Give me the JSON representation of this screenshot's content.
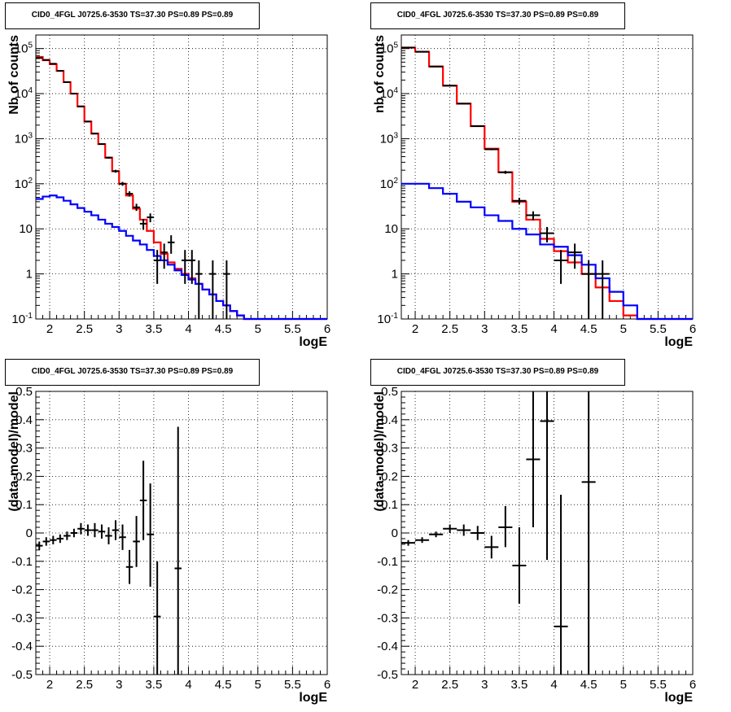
{
  "chart_data": [
    {
      "type": "histogram",
      "title": "CID0_4FGL J0725.6-3530 TS=37.30 PS=0.89 PS=0.89",
      "xlabel": "logE",
      "ylabel": "Nb of counts",
      "xlim": [
        1.8,
        6.0
      ],
      "ylim": [
        0.1,
        200000
      ],
      "yscale": "log",
      "grid": true,
      "x_ticks": [
        "2",
        "2.5",
        "3",
        "3.5",
        "4",
        "4.5",
        "5",
        "5.5",
        "6"
      ],
      "y_ticks": [
        "10^{-1}",
        "1",
        "10",
        "10^{2}",
        "10^{3}",
        "10^{4}",
        "10^{5}"
      ],
      "series": [
        {
          "color": "#ff0000",
          "bin_edges": [
            1.8,
            1.9,
            2.0,
            2.1,
            2.2,
            2.3,
            2.4,
            2.5,
            2.6,
            2.7,
            2.8,
            2.9,
            3.0,
            3.1,
            3.2,
            3.3,
            3.4,
            3.5,
            3.6,
            3.7,
            3.8,
            3.9,
            4.0,
            4.1,
            4.2,
            4.3,
            4.4,
            4.5,
            4.6,
            4.7,
            4.8,
            4.9,
            5.0,
            5.1,
            5.2,
            5.3,
            5.4,
            5.5,
            5.6,
            5.7,
            5.8,
            5.9,
            6.0
          ],
          "values": [
            65000,
            55000,
            45000,
            32000,
            18000,
            10000,
            5200,
            2400,
            1300,
            760,
            380,
            190,
            100,
            55,
            28,
            16,
            9,
            5,
            2.8,
            1.8,
            1.3,
            1.0,
            0.8,
            0.6,
            0.45,
            0.35,
            0.25,
            0.2,
            0.15,
            0.12,
            0.1,
            0.1,
            0.1,
            0.1,
            0.1,
            0.1,
            0.1,
            0.1,
            0.1,
            0.1,
            0.1,
            0.1
          ]
        },
        {
          "color": "#0000ff",
          "bin_edges": [
            1.8,
            1.9,
            2.0,
            2.1,
            2.2,
            2.3,
            2.4,
            2.5,
            2.6,
            2.7,
            2.8,
            2.9,
            3.0,
            3.1,
            3.2,
            3.3,
            3.4,
            3.5,
            3.6,
            3.7,
            3.8,
            3.9,
            4.0,
            4.1,
            4.2,
            4.3,
            4.4,
            4.5,
            4.6,
            4.7,
            4.8,
            4.9,
            5.0,
            5.1,
            5.2,
            5.3,
            5.4,
            5.5,
            5.6,
            5.7,
            5.8,
            5.9,
            6.0
          ],
          "values": [
            46,
            52,
            55,
            50,
            42,
            35,
            29,
            24,
            20,
            16,
            13,
            11,
            9,
            7,
            5.5,
            4.5,
            3.4,
            2.5,
            2.0,
            1.6,
            1.2,
            0.95,
            0.75,
            0.6,
            0.45,
            0.35,
            0.25,
            0.2,
            0.15,
            0.12,
            0.1,
            0.1,
            0.1,
            0.1,
            0.1,
            0.1,
            0.1,
            0.1,
            0.1,
            0.1,
            0.1,
            0.1
          ]
        },
        {
          "color": "#000000",
          "points": [
            {
              "x": 1.85,
              "y": 62000,
              "xerr": 0.05,
              "ylo": 61700,
              "yhi": 62300
            },
            {
              "x": 1.95,
              "y": 56000,
              "xerr": 0.05,
              "ylo": 55700,
              "yhi": 56300
            },
            {
              "x": 2.05,
              "y": 46000,
              "xerr": 0.05,
              "ylo": 45700,
              "yhi": 46300
            },
            {
              "x": 2.15,
              "y": 32000,
              "xerr": 0.05,
              "ylo": 31800,
              "yhi": 32200
            },
            {
              "x": 2.25,
              "y": 18000,
              "xerr": 0.05,
              "ylo": 17850,
              "yhi": 18150
            },
            {
              "x": 2.35,
              "y": 10000,
              "xerr": 0.05,
              "ylo": 9900,
              "yhi": 10100
            },
            {
              "x": 2.45,
              "y": 5200,
              "xerr": 0.05,
              "ylo": 5130,
              "yhi": 5270
            },
            {
              "x": 2.55,
              "y": 2400,
              "xerr": 0.05,
              "ylo": 2350,
              "yhi": 2450
            },
            {
              "x": 2.65,
              "y": 1300,
              "xerr": 0.05,
              "ylo": 1265,
              "yhi": 1335
            },
            {
              "x": 2.75,
              "y": 760,
              "xerr": 0.05,
              "ylo": 733,
              "yhi": 787
            },
            {
              "x": 2.85,
              "y": 380,
              "xerr": 0.05,
              "ylo": 360,
              "yhi": 400
            },
            {
              "x": 2.95,
              "y": 190,
              "xerr": 0.05,
              "ylo": 176,
              "yhi": 204
            },
            {
              "x": 3.05,
              "y": 100,
              "xerr": 0.05,
              "ylo": 90,
              "yhi": 110
            },
            {
              "x": 3.15,
              "y": 60,
              "xerr": 0.05,
              "ylo": 52,
              "yhi": 68
            },
            {
              "x": 3.25,
              "y": 30,
              "xerr": 0.05,
              "ylo": 25,
              "yhi": 36
            },
            {
              "x": 3.35,
              "y": 13,
              "xerr": 0.05,
              "ylo": 9.5,
              "yhi": 16.5
            },
            {
              "x": 3.45,
              "y": 18,
              "xerr": 0.05,
              "ylo": 14,
              "yhi": 22
            },
            {
              "x": 3.55,
              "y": 2,
              "xerr": 0.05,
              "ylo": 0.6,
              "yhi": 3.4
            },
            {
              "x": 3.65,
              "y": 3,
              "xerr": 0.05,
              "ylo": 1.3,
              "yhi": 4.7
            },
            {
              "x": 3.75,
              "y": 5,
              "xerr": 0.05,
              "ylo": 2.8,
              "yhi": 7.2
            },
            {
              "x": 3.95,
              "y": 2,
              "xerr": 0.05,
              "ylo": 0.6,
              "yhi": 3.4
            },
            {
              "x": 4.05,
              "y": 2,
              "xerr": 0.05,
              "ylo": 0.6,
              "yhi": 3.4
            },
            {
              "x": 4.15,
              "y": 1,
              "xerr": 0.05,
              "ylo": 0.1,
              "yhi": 2
            },
            {
              "x": 4.35,
              "y": 1,
              "xerr": 0.05,
              "ylo": 0.1,
              "yhi": 2
            },
            {
              "x": 4.55,
              "y": 1,
              "xerr": 0.05,
              "ylo": 0.1,
              "yhi": 2
            }
          ]
        }
      ]
    },
    {
      "type": "histogram",
      "title": "CID0_4FGL J0725.6-3530 TS=37.30 PS=0.89 PS=0.89",
      "xlabel": "logE",
      "ylabel": "nb of counts",
      "xlim": [
        1.8,
        6.0
      ],
      "ylim": [
        0.1,
        200000
      ],
      "yscale": "log",
      "grid": true,
      "x_ticks": [
        "2",
        "2.5",
        "3",
        "3.5",
        "4",
        "4.5",
        "5",
        "5.5",
        "6"
      ],
      "y_ticks": [
        "10^{-1}",
        "1",
        "10",
        "10^{2}",
        "10^{3}",
        "10^{4}",
        "10^{5}"
      ],
      "series": [
        {
          "color": "#ff0000",
          "bin_edges": [
            1.8,
            2.0,
            2.2,
            2.4,
            2.6,
            2.8,
            3.0,
            3.2,
            3.4,
            3.6,
            3.8,
            4.0,
            4.2,
            4.4,
            4.6,
            4.8,
            5.0,
            5.2,
            5.4,
            5.6,
            5.8,
            6.0
          ],
          "values": [
            105000,
            85000,
            40000,
            15000,
            6000,
            1900,
            600,
            180,
            40,
            16,
            6,
            3.2,
            1.8,
            1.0,
            0.5,
            0.25,
            0.12,
            0.1,
            0.1,
            0.1,
            0.1
          ]
        },
        {
          "color": "#0000ff",
          "bin_edges": [
            1.8,
            2.0,
            2.2,
            2.4,
            2.6,
            2.8,
            3.0,
            3.2,
            3.4,
            3.6,
            3.8,
            4.0,
            4.2,
            4.4,
            4.6,
            4.8,
            5.0,
            5.2,
            5.4,
            5.6,
            5.8,
            6.0
          ],
          "values": [
            100,
            100,
            80,
            60,
            40,
            30,
            20,
            15,
            10,
            7.5,
            4.5,
            4.0,
            2.6,
            1.6,
            0.8,
            0.4,
            0.2,
            0.1,
            0.1,
            0.1,
            0.1
          ]
        },
        {
          "color": "#000000",
          "points": [
            {
              "x": 1.9,
              "y": 105000,
              "xerr": 0.1,
              "ylo": 104700,
              "yhi": 105300
            },
            {
              "x": 2.1,
              "y": 85000,
              "xerr": 0.1,
              "ylo": 84700,
              "yhi": 85300
            },
            {
              "x": 2.3,
              "y": 40000,
              "xerr": 0.1,
              "ylo": 39800,
              "yhi": 40200
            },
            {
              "x": 2.5,
              "y": 15000,
              "xerr": 0.1,
              "ylo": 14870,
              "yhi": 15130
            },
            {
              "x": 2.7,
              "y": 6000,
              "xerr": 0.1,
              "ylo": 5920,
              "yhi": 6080
            },
            {
              "x": 2.9,
              "y": 1900,
              "xerr": 0.1,
              "ylo": 1855,
              "yhi": 1945
            },
            {
              "x": 3.1,
              "y": 580,
              "xerr": 0.1,
              "ylo": 555,
              "yhi": 605
            },
            {
              "x": 3.3,
              "y": 180,
              "xerr": 0.1,
              "ylo": 166,
              "yhi": 194
            },
            {
              "x": 3.5,
              "y": 42,
              "xerr": 0.1,
              "ylo": 35,
              "yhi": 49
            },
            {
              "x": 3.7,
              "y": 20,
              "xerr": 0.1,
              "ylo": 15.5,
              "yhi": 24.5
            },
            {
              "x": 3.9,
              "y": 8,
              "xerr": 0.1,
              "ylo": 5,
              "yhi": 11
            },
            {
              "x": 4.1,
              "y": 2,
              "xerr": 0.1,
              "ylo": 0.6,
              "yhi": 3.4
            },
            {
              "x": 4.3,
              "y": 3,
              "xerr": 0.1,
              "ylo": 1.3,
              "yhi": 4.7
            },
            {
              "x": 4.5,
              "y": 1,
              "xerr": 0.1,
              "ylo": 0.1,
              "yhi": 2
            },
            {
              "x": 4.7,
              "y": 1,
              "xerr": 0.1,
              "ylo": 0.1,
              "yhi": 2
            }
          ]
        }
      ]
    },
    {
      "type": "scatter",
      "title": "CID0_4FGL J0725.6-3530 TS=37.30 PS=0.89 PS=0.89",
      "xlabel": "logE",
      "ylabel": "(data-model)/model",
      "xlim": [
        1.8,
        6.0
      ],
      "ylim": [
        -0.5,
        0.5
      ],
      "grid": true,
      "x_ticks": [
        "2",
        "2.5",
        "3",
        "3.5",
        "4",
        "4.5",
        "5",
        "5.5",
        "6"
      ],
      "y_ticks": [
        "-0.5",
        "-0.4",
        "-0.3",
        "-0.2",
        "-0.1",
        "0",
        "0.1",
        "0.2",
        "0.3",
        "0.4",
        "0.5"
      ],
      "series": [
        {
          "color": "#000000",
          "points": [
            {
              "x": 1.85,
              "y": -0.045,
              "xerr": 0.05,
              "ylo": -0.06,
              "yhi": -0.03
            },
            {
              "x": 1.95,
              "y": -0.03,
              "xerr": 0.05,
              "ylo": -0.045,
              "yhi": -0.015
            },
            {
              "x": 2.05,
              "y": -0.025,
              "xerr": 0.05,
              "ylo": -0.04,
              "yhi": -0.01
            },
            {
              "x": 2.15,
              "y": -0.02,
              "xerr": 0.05,
              "ylo": -0.035,
              "yhi": -0.005
            },
            {
              "x": 2.25,
              "y": -0.01,
              "xerr": 0.05,
              "ylo": -0.025,
              "yhi": 0.005
            },
            {
              "x": 2.35,
              "y": 0.0,
              "xerr": 0.05,
              "ylo": -0.015,
              "yhi": 0.015
            },
            {
              "x": 2.45,
              "y": 0.015,
              "xerr": 0.05,
              "ylo": -0.005,
              "yhi": 0.035
            },
            {
              "x": 2.55,
              "y": 0.01,
              "xerr": 0.05,
              "ylo": -0.01,
              "yhi": 0.03
            },
            {
              "x": 2.65,
              "y": 0.01,
              "xerr": 0.05,
              "ylo": -0.015,
              "yhi": 0.035
            },
            {
              "x": 2.75,
              "y": 0.005,
              "xerr": 0.05,
              "ylo": -0.02,
              "yhi": 0.03
            },
            {
              "x": 2.85,
              "y": -0.01,
              "xerr": 0.05,
              "ylo": -0.04,
              "yhi": 0.02
            },
            {
              "x": 2.95,
              "y": 0.01,
              "xerr": 0.05,
              "ylo": -0.025,
              "yhi": 0.045
            },
            {
              "x": 3.05,
              "y": -0.015,
              "xerr": 0.05,
              "ylo": -0.06,
              "yhi": 0.03
            },
            {
              "x": 3.15,
              "y": -0.12,
              "xerr": 0.05,
              "ylo": -0.18,
              "yhi": -0.06
            },
            {
              "x": 3.25,
              "y": -0.03,
              "xerr": 0.05,
              "ylo": -0.12,
              "yhi": 0.06
            },
            {
              "x": 3.35,
              "y": 0.115,
              "xerr": 0.05,
              "ylo": -0.025,
              "yhi": 0.255
            },
            {
              "x": 3.45,
              "y": -0.005,
              "xerr": 0.05,
              "ylo": -0.19,
              "yhi": 0.175
            },
            {
              "x": 3.55,
              "y": -0.295,
              "xerr": 0.05,
              "ylo": -0.5,
              "yhi": -0.1
            },
            {
              "x": 3.85,
              "y": -0.125,
              "xerr": 0.05,
              "ylo": -0.5,
              "yhi": 0.375
            }
          ]
        }
      ]
    },
    {
      "type": "scatter",
      "title": "CID0_4FGL J0725.6-3530 TS=37.30 PS=0.89 PS=0.89",
      "xlabel": "logE",
      "ylabel": "(data-model)/model",
      "xlim": [
        1.8,
        6.0
      ],
      "ylim": [
        -0.5,
        0.5
      ],
      "grid": true,
      "x_ticks": [
        "2",
        "2.5",
        "3",
        "3.5",
        "4",
        "4.5",
        "5",
        "5.5",
        "6"
      ],
      "y_ticks": [
        "-0.5",
        "-0.4",
        "-0.3",
        "-0.2",
        "-0.1",
        "0",
        "0.1",
        "0.2",
        "0.3",
        "0.4",
        "0.5"
      ],
      "series": [
        {
          "color": "#000000",
          "points": [
            {
              "x": 1.9,
              "y": -0.035,
              "xerr": 0.1,
              "ylo": -0.045,
              "yhi": -0.025
            },
            {
              "x": 2.1,
              "y": -0.025,
              "xerr": 0.1,
              "ylo": -0.035,
              "yhi": -0.015
            },
            {
              "x": 2.3,
              "y": -0.005,
              "xerr": 0.1,
              "ylo": -0.015,
              "yhi": 0.005
            },
            {
              "x": 2.5,
              "y": 0.015,
              "xerr": 0.1,
              "ylo": 0.0,
              "yhi": 0.03
            },
            {
              "x": 2.7,
              "y": 0.01,
              "xerr": 0.1,
              "ylo": -0.01,
              "yhi": 0.03
            },
            {
              "x": 2.9,
              "y": 0.0,
              "xerr": 0.1,
              "ylo": -0.025,
              "yhi": 0.025
            },
            {
              "x": 3.1,
              "y": -0.05,
              "xerr": 0.1,
              "ylo": -0.09,
              "yhi": -0.01
            },
            {
              "x": 3.3,
              "y": 0.02,
              "xerr": 0.1,
              "ylo": -0.05,
              "yhi": 0.095
            },
            {
              "x": 3.5,
              "y": -0.115,
              "xerr": 0.1,
              "ylo": -0.25,
              "yhi": 0.02
            },
            {
              "x": 3.7,
              "y": 0.26,
              "xerr": 0.1,
              "ylo": 0.02,
              "yhi": 0.5
            },
            {
              "x": 3.9,
              "y": 0.395,
              "xerr": 0.1,
              "ylo": -0.095,
              "yhi": 0.5
            },
            {
              "x": 4.1,
              "y": -0.33,
              "xerr": 0.1,
              "ylo": -0.5,
              "yhi": 0.135
            },
            {
              "x": 4.5,
              "y": 0.18,
              "xerr": 0.1,
              "ylo": -0.5,
              "yhi": 0.5
            }
          ]
        }
      ]
    }
  ]
}
